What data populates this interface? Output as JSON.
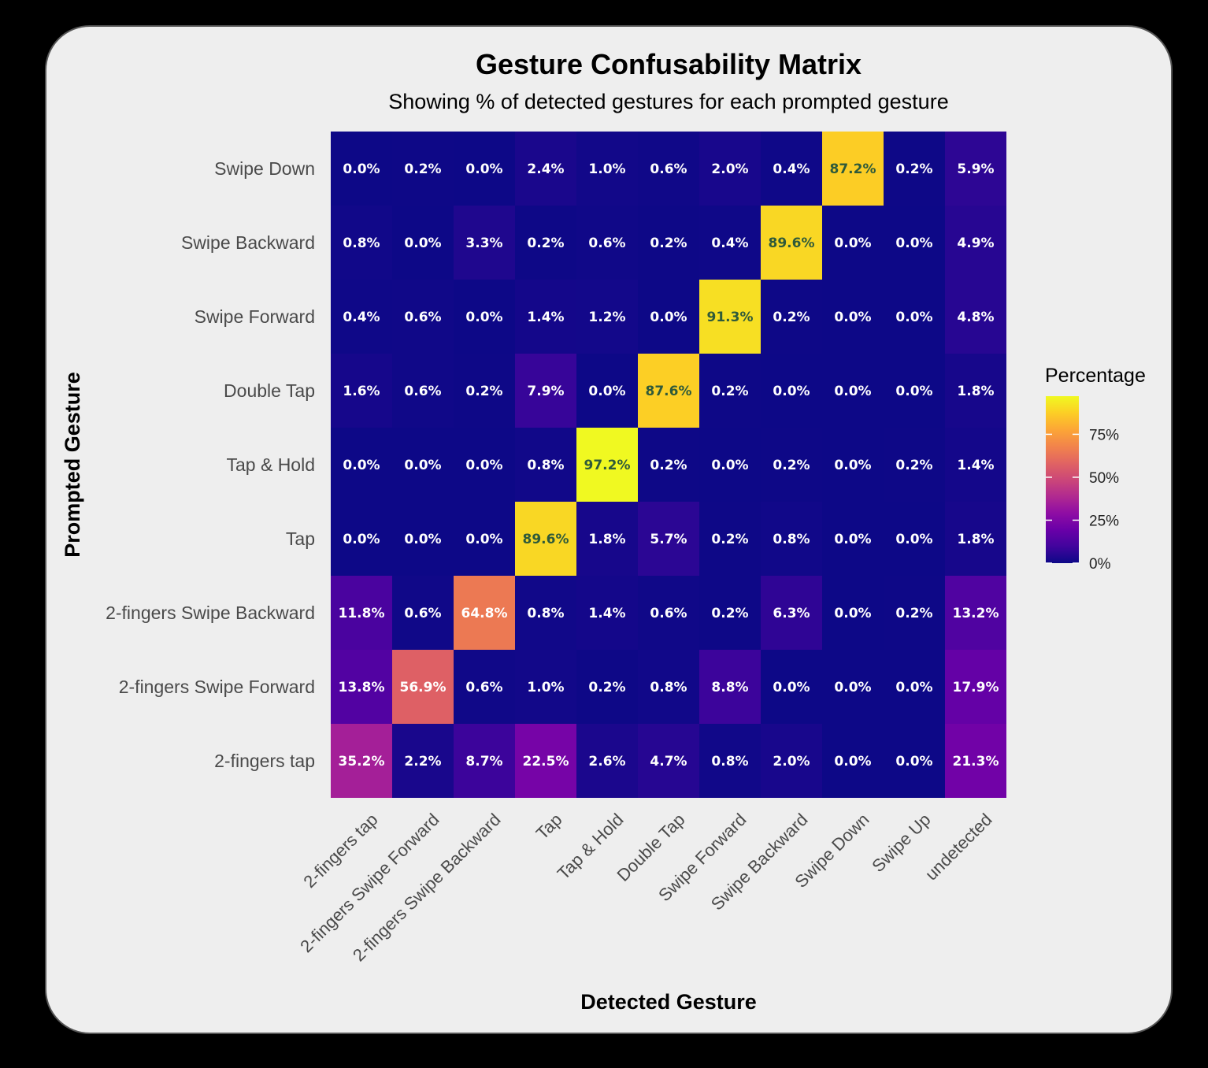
{
  "chart_data": {
    "type": "heatmap",
    "title": "Gesture Confusability Matrix",
    "subtitle": "Showing % of detected gestures for each prompted gesture",
    "xlabel": "Detected Gesture",
    "ylabel": "Prompted Gesture",
    "x_categories": [
      "2-fingers tap",
      "2-fingers Swipe Forward",
      "2-fingers Swipe Backward",
      "Tap",
      "Tap & Hold",
      "Double Tap",
      "Swipe Forward",
      "Swipe Backward",
      "Swipe Down",
      "Swipe Up",
      "undetected"
    ],
    "y_categories": [
      "Swipe Down",
      "Swipe Backward",
      "Swipe Forward",
      "Double Tap",
      "Tap & Hold",
      "Tap",
      "2-fingers Swipe Backward",
      "2-fingers Swipe Forward",
      "2-fingers tap"
    ],
    "values": [
      [
        0.0,
        0.2,
        0.0,
        2.4,
        1.0,
        0.6,
        2.0,
        0.4,
        87.2,
        0.2,
        5.9
      ],
      [
        0.8,
        0.0,
        3.3,
        0.2,
        0.6,
        0.2,
        0.4,
        89.6,
        0.0,
        0.0,
        4.9
      ],
      [
        0.4,
        0.6,
        0.0,
        1.4,
        1.2,
        0.0,
        91.3,
        0.2,
        0.0,
        0.0,
        4.8
      ],
      [
        1.6,
        0.6,
        0.2,
        7.9,
        0.0,
        87.6,
        0.2,
        0.0,
        0.0,
        0.0,
        1.8
      ],
      [
        0.0,
        0.0,
        0.0,
        0.8,
        97.2,
        0.2,
        0.0,
        0.2,
        0.0,
        0.2,
        1.4
      ],
      [
        0.0,
        0.0,
        0.0,
        89.6,
        1.8,
        5.7,
        0.2,
        0.8,
        0.0,
        0.0,
        1.8
      ],
      [
        11.8,
        0.6,
        64.8,
        0.8,
        1.4,
        0.6,
        0.2,
        6.3,
        0.0,
        0.2,
        13.2
      ],
      [
        13.8,
        56.9,
        0.6,
        1.0,
        0.2,
        0.8,
        8.8,
        0.0,
        0.0,
        0.0,
        17.9
      ],
      [
        35.2,
        2.2,
        8.7,
        22.5,
        2.6,
        4.7,
        0.8,
        2.0,
        0.0,
        0.0,
        21.3
      ]
    ],
    "value_suffix": "%",
    "color_scale": "plasma",
    "color_range": [
      0,
      97.2
    ],
    "legend": {
      "title": "Percentage",
      "ticks": [
        0,
        25,
        50,
        75
      ],
      "tick_labels": [
        "0%",
        "25%",
        "50%",
        "75%"
      ],
      "position": "right"
    },
    "grid": false
  },
  "colors": {
    "outer_background": "#000000",
    "panel_background": "#eeeeee",
    "low_label_text": "#ffffff",
    "high_label_text": "#2f5a3a"
  }
}
